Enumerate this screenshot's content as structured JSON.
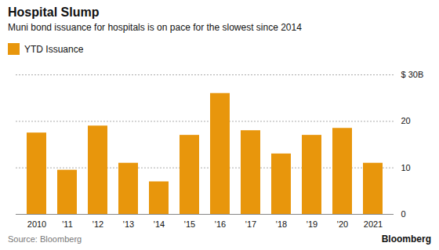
{
  "chart_data": {
    "type": "bar",
    "title": "Hospital Slump",
    "subtitle": "Muni bond issuance for hospitals is on pace for the slowest since 2014",
    "caption": "Source: Bloomberg",
    "annotations": [
      "Bloomberg"
    ],
    "categories": [
      "2010",
      "'11",
      "'12",
      "'13",
      "'14",
      "'15",
      "'16",
      "'17",
      "'18",
      "'19",
      "'20",
      "2021"
    ],
    "series": [
      {
        "name": "YTD Issuance",
        "color": "#E8960C",
        "values": [
          17.5,
          9.5,
          19.0,
          11.0,
          7.0,
          17.0,
          26.0,
          18.0,
          13.0,
          17.0,
          18.5,
          11.0
        ]
      }
    ],
    "ylim": [
      0,
      30
    ],
    "yticks": [
      0,
      10,
      20,
      {
        "value": 30,
        "label": "$ 30B"
      }
    ],
    "grid": true,
    "legend": "upper left"
  }
}
